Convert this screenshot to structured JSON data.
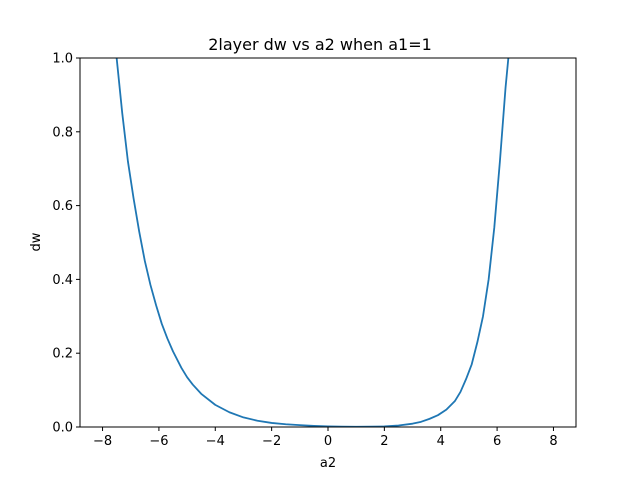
{
  "chart_data": {
    "type": "line",
    "title": "2layer dw vs a2 when a1=1",
    "xlabel": "a2",
    "ylabel": "dw",
    "xlim": [
      -8.8,
      8.8
    ],
    "ylim": [
      0.0,
      1.0
    ],
    "xticks": [
      -8,
      -6,
      -4,
      -2,
      0,
      2,
      4,
      6,
      8
    ],
    "xtick_labels": [
      "−8",
      "−6",
      "−4",
      "−2",
      "0",
      "2",
      "4",
      "6",
      "8"
    ],
    "yticks": [
      0.0,
      0.2,
      0.4,
      0.6,
      0.8,
      1.0
    ],
    "ytick_labels": [
      "0.0",
      "0.2",
      "0.4",
      "0.6",
      "0.8",
      "1.0"
    ],
    "grid": false,
    "series": [
      {
        "color": "#1f77b4",
        "x": [
          -7.5,
          -7.3,
          -7.1,
          -6.9,
          -6.7,
          -6.5,
          -6.3,
          -6.1,
          -5.9,
          -5.7,
          -5.5,
          -5.2,
          -5.0,
          -4.8,
          -4.5,
          -4.0,
          -3.5,
          -3.0,
          -2.5,
          -2.0,
          -1.5,
          -1.0,
          -0.5,
          0.0,
          0.5,
          1.0,
          1.5,
          2.0,
          2.5,
          3.0,
          3.3,
          3.6,
          3.9,
          4.2,
          4.5,
          4.7,
          4.9,
          5.1,
          5.3,
          5.5,
          5.7,
          5.9,
          6.1,
          6.3,
          6.4
        ],
        "y": [
          1.0,
          0.85,
          0.72,
          0.62,
          0.53,
          0.45,
          0.385,
          0.33,
          0.28,
          0.24,
          0.205,
          0.16,
          0.135,
          0.115,
          0.09,
          0.06,
          0.04,
          0.026,
          0.017,
          0.011,
          0.0075,
          0.005,
          0.003,
          0.0015,
          0.0008,
          0.0005,
          0.0008,
          0.0015,
          0.004,
          0.009,
          0.014,
          0.022,
          0.032,
          0.047,
          0.07,
          0.095,
          0.13,
          0.17,
          0.23,
          0.3,
          0.4,
          0.54,
          0.72,
          0.92,
          1.0
        ]
      }
    ]
  }
}
